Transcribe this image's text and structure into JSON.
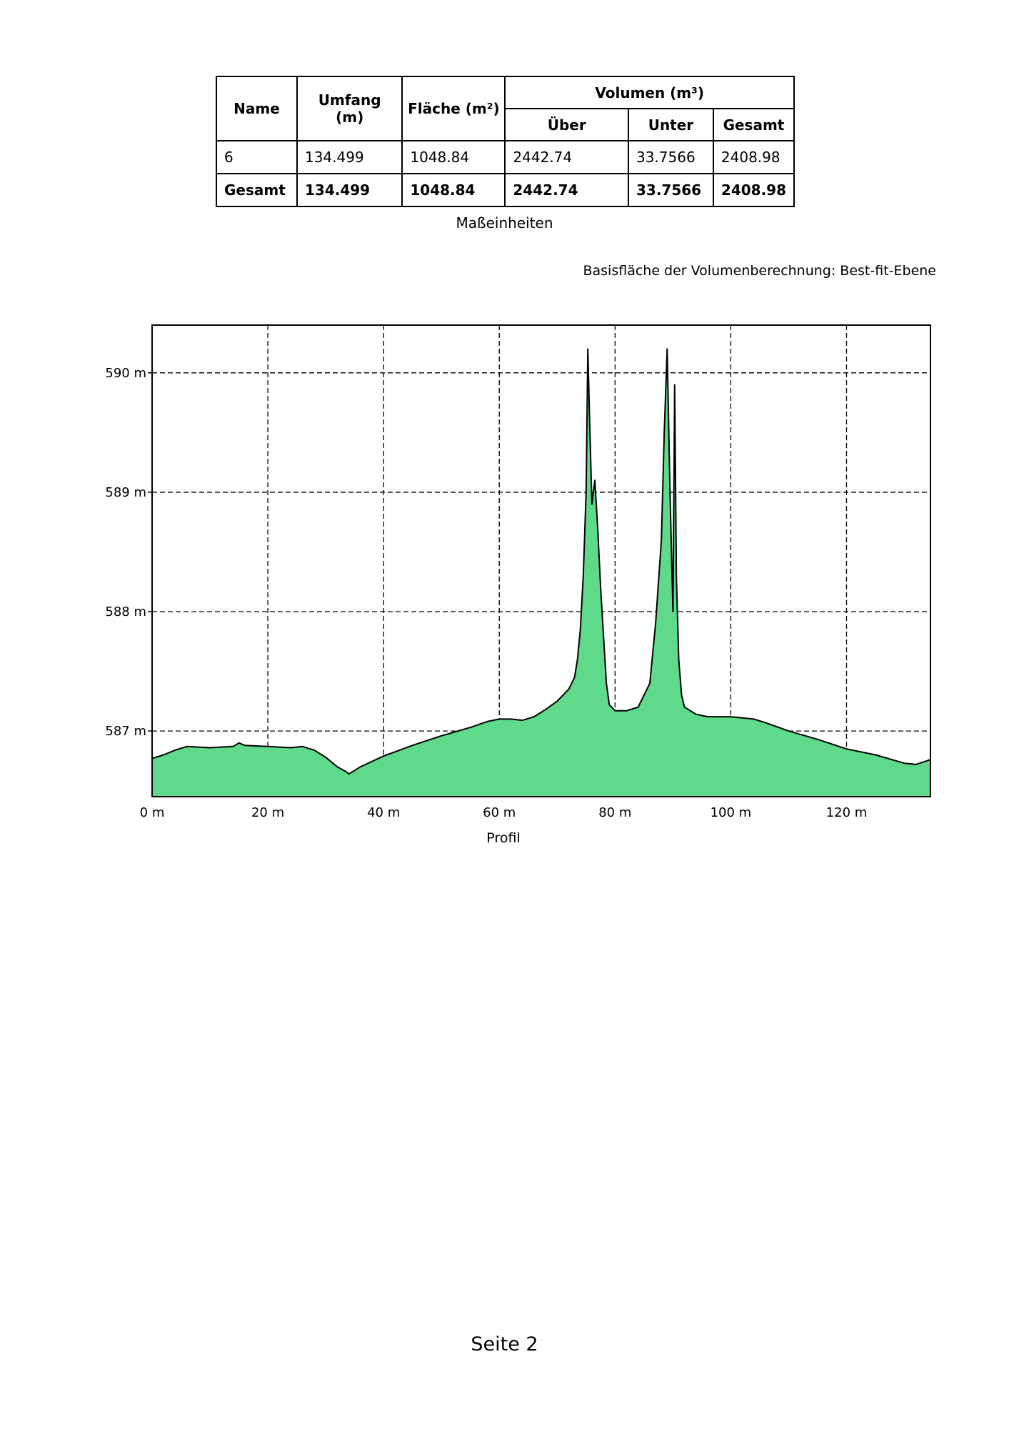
{
  "table": {
    "headers": {
      "name": "Name",
      "umfang": "Umfang (m)",
      "flaeche": "Fläche (m²)",
      "volumen": "Volumen (m³)",
      "ueber": "Über",
      "unter": "Unter",
      "gesamt": "Gesamt"
    },
    "row": {
      "name": "6",
      "umfang": "134.499",
      "flaeche": "1048.84",
      "ueber": "2442.74",
      "unter": "33.7566",
      "gesamt": "2408.98"
    },
    "total": {
      "name": "Gesamt",
      "umfang": "134.499",
      "flaeche": "1048.84",
      "ueber": "2442.74",
      "unter": "33.7566",
      "gesamt": "2408.98"
    }
  },
  "units_caption": "Maßeinheiten",
  "basis_note": "Basisfläche der Volumenberechnung: Best-fit-Ebene",
  "page_number": "Seite 2",
  "colors": {
    "fill": "#5fd98a",
    "outline": "#000000",
    "grid": "#000000"
  },
  "chart_data": {
    "type": "area",
    "xlabel": "Profil",
    "ylabel": "",
    "xlim": [
      0,
      134.5
    ],
    "ylim": [
      586.45,
      590.4
    ],
    "x_ticks": [
      0,
      20,
      40,
      60,
      80,
      100,
      120
    ],
    "x_tick_labels": [
      "0 m",
      "20 m",
      "40 m",
      "60 m",
      "80 m",
      "100 m",
      "120 m"
    ],
    "y_ticks": [
      587,
      588,
      589,
      590
    ],
    "y_tick_labels": [
      "587 m",
      "588 m",
      "589 m",
      "590 m"
    ],
    "grid": true,
    "x": [
      0,
      2,
      4,
      6,
      10,
      14,
      15,
      16,
      20,
      24,
      26,
      28,
      30,
      32,
      33.5,
      34,
      36,
      40,
      45,
      50,
      55,
      58,
      60,
      62,
      64,
      66,
      68,
      70,
      72,
      73,
      73.5,
      74,
      74.5,
      75,
      75.3,
      75.6,
      76,
      76.5,
      77,
      77.5,
      78,
      78.5,
      79,
      80,
      82,
      84,
      86,
      87,
      88,
      88.5,
      89,
      89.5,
      90,
      90.3,
      90.6,
      91,
      91.5,
      92,
      94,
      96,
      100,
      104,
      106,
      110,
      115,
      120,
      125,
      130,
      132,
      134.5
    ],
    "values": [
      586.77,
      586.8,
      586.84,
      586.87,
      586.86,
      586.87,
      586.9,
      586.88,
      586.87,
      586.86,
      586.87,
      586.84,
      586.78,
      586.7,
      586.66,
      586.64,
      586.7,
      586.79,
      586.88,
      586.96,
      587.03,
      587.08,
      587.1,
      587.1,
      587.09,
      587.12,
      587.18,
      587.25,
      587.35,
      587.45,
      587.6,
      587.85,
      588.3,
      589.0,
      590.2,
      589.6,
      588.9,
      589.1,
      588.7,
      588.2,
      587.8,
      587.4,
      587.22,
      587.17,
      587.17,
      587.2,
      587.4,
      587.9,
      588.6,
      589.5,
      590.2,
      589.0,
      588.0,
      589.9,
      588.3,
      587.6,
      587.3,
      587.2,
      587.14,
      587.12,
      587.12,
      587.1,
      587.07,
      587.0,
      586.93,
      586.85,
      586.8,
      586.73,
      586.72,
      586.76
    ]
  }
}
